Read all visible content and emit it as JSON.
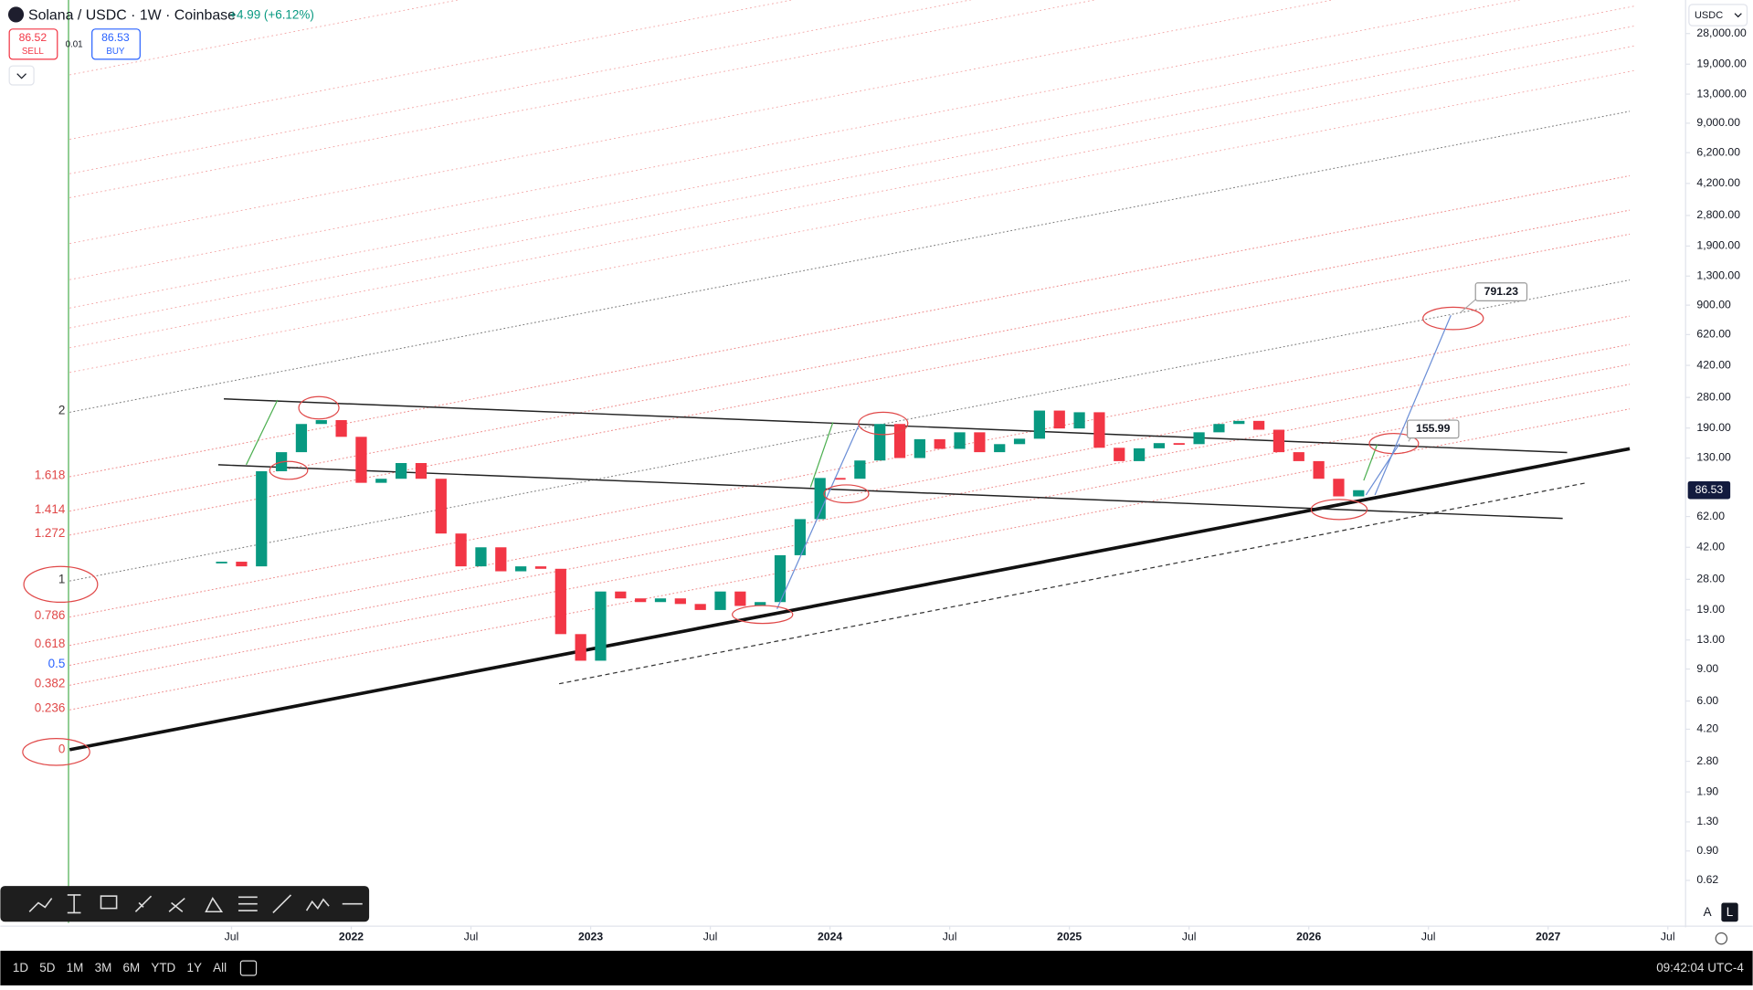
{
  "header": {
    "symbol": "Solana / USDC · 1W · Coinbase",
    "change": "+4.99 (+6.12%)",
    "sell_price": "86.52",
    "sell_label": "SELL",
    "spread": "0.01",
    "buy_price": "86.53",
    "buy_label": "BUY"
  },
  "price_axis": {
    "currency": "USDC",
    "log_scale": true,
    "last_price": 86.53,
    "ticks": [
      {
        "value": 28000,
        "label": "28,000.00"
      },
      {
        "value": 19000,
        "label": "19,000.00"
      },
      {
        "value": 13000,
        "label": "13,000.00"
      },
      {
        "value": 9000,
        "label": "9,000.00"
      },
      {
        "value": 6200,
        "label": "6,200.00"
      },
      {
        "value": 4200,
        "label": "4,200.00"
      },
      {
        "value": 2800,
        "label": "2,800.00"
      },
      {
        "value": 1900,
        "label": "1,900.00"
      },
      {
        "value": 1300,
        "label": "1,300.00"
      },
      {
        "value": 900,
        "label": "900.00"
      },
      {
        "value": 620,
        "label": "620.00"
      },
      {
        "value": 420,
        "label": "420.00"
      },
      {
        "value": 280,
        "label": "280.00"
      },
      {
        "value": 190,
        "label": "190.00"
      },
      {
        "value": 130,
        "label": "130.00"
      },
      {
        "value": 62,
        "label": "62.00"
      },
      {
        "value": 42,
        "label": "42.00"
      },
      {
        "value": 28,
        "label": "28.00"
      },
      {
        "value": 19,
        "label": "19.00"
      },
      {
        "value": 13,
        "label": "13.00"
      },
      {
        "value": 9,
        "label": "9.00"
      },
      {
        "value": 6,
        "label": "6.00"
      },
      {
        "value": 4.2,
        "label": "4.20"
      },
      {
        "value": 2.8,
        "label": "2.80"
      },
      {
        "value": 1.9,
        "label": "1.90"
      },
      {
        "value": 1.3,
        "label": "1.30"
      },
      {
        "value": 0.9,
        "label": "0.90"
      },
      {
        "value": 0.62,
        "label": "0.62"
      }
    ]
  },
  "time_axis": {
    "ticks": [
      {
        "value": "2021-07",
        "label": "Jul"
      },
      {
        "value": "2022-01",
        "label": "2022"
      },
      {
        "value": "2022-07",
        "label": "Jul"
      },
      {
        "value": "2023-01",
        "label": "2023"
      },
      {
        "value": "2023-07",
        "label": "Jul"
      },
      {
        "value": "2024-01",
        "label": "2024"
      },
      {
        "value": "2024-07",
        "label": "Jul"
      },
      {
        "value": "2025-01",
        "label": "2025"
      },
      {
        "value": "2025-07",
        "label": "Jul"
      },
      {
        "value": "2026-01",
        "label": "2026"
      },
      {
        "value": "2026-07",
        "label": "Jul"
      },
      {
        "value": "2027-01",
        "label": "2027"
      },
      {
        "value": "2027-07",
        "label": "Jul"
      }
    ]
  },
  "price_chart": {
    "type": "candlestick",
    "x": [
      "2021-06",
      "2021-07",
      "2021-08",
      "2021-09",
      "2021-10",
      "2021-11",
      "2021-12",
      "2022-01",
      "2022-02",
      "2022-03",
      "2022-04",
      "2022-05",
      "2022-06",
      "2022-07",
      "2022-08",
      "2022-09",
      "2022-10",
      "2022-11",
      "2022-12",
      "2023-01",
      "2023-02",
      "2023-03",
      "2023-04",
      "2023-05",
      "2023-06",
      "2023-07",
      "2023-08",
      "2023-09",
      "2023-10",
      "2023-11",
      "2023-12",
      "2024-01",
      "2024-02",
      "2024-03",
      "2024-04",
      "2024-05",
      "2024-06",
      "2024-07",
      "2024-08",
      "2024-09",
      "2024-10",
      "2024-11",
      "2024-12",
      "2025-01",
      "2025-02",
      "2025-03",
      "2025-04",
      "2025-05",
      "2025-06",
      "2025-07",
      "2025-08",
      "2025-09",
      "2025-10",
      "2025-11",
      "2025-12",
      "2026-01",
      "2026-02",
      "2026-03"
    ],
    "closes": [
      35,
      33,
      110,
      140,
      200,
      210,
      170,
      95,
      100,
      122,
      100,
      50,
      33,
      42,
      31,
      33,
      32,
      14,
      10,
      24,
      22,
      21,
      22,
      20.5,
      19,
      24,
      20,
      21,
      38,
      60,
      101,
      100,
      126,
      200,
      130,
      165,
      146,
      180,
      140,
      155,
      166,
      237,
      189,
      232,
      148,
      125,
      147,
      157,
      155,
      180,
      200,
      208,
      186,
      140,
      125,
      100,
      80,
      86.53
    ],
    "up_color": "#089981",
    "down_color": "#f23645"
  },
  "fib_channel": {
    "levels": [
      2,
      1.618,
      1.414,
      1.272,
      1,
      0.786,
      0.618,
      0.5,
      0.382,
      0.236,
      0
    ]
  },
  "targets": [
    791.23,
    155.99
  ],
  "scale_buttons": [
    "A",
    "L"
  ],
  "range_buttons": [
    "1D",
    "5D",
    "1M",
    "3M",
    "6M",
    "YTD",
    "1Y",
    "All"
  ],
  "clock": "09:42:04 UTC-4"
}
